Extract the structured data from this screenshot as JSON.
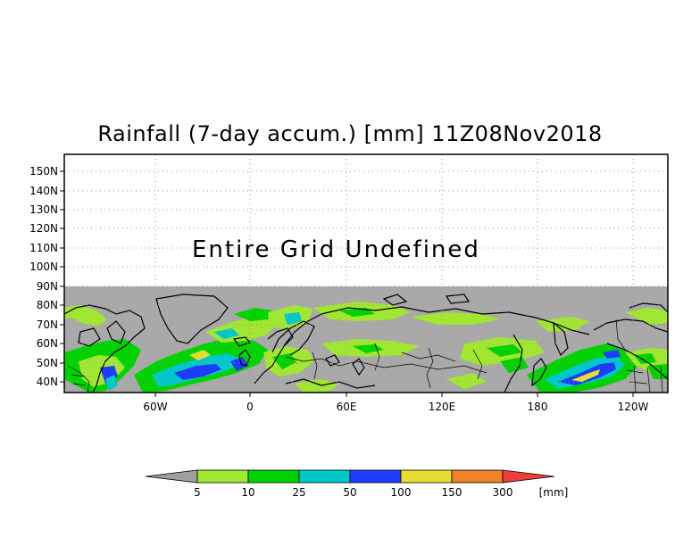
{
  "title": "Rainfall (7-day accum.) [mm] 11Z08Nov2018",
  "overlay_text": "Entire Grid Undefined",
  "lat_labels": [
    "150N",
    "140N",
    "130N",
    "120N",
    "110N",
    "100N",
    "90N",
    "80N",
    "70N",
    "60N",
    "50N",
    "40N"
  ],
  "lon_labels": [
    "60W",
    "0",
    "60E",
    "120E",
    "180",
    "120W"
  ],
  "legend": {
    "unit": "[mm]",
    "thresholds": [
      "5",
      "10",
      "25",
      "50",
      "100",
      "150",
      "300"
    ],
    "colors": [
      "#a0a0a0",
      "#a0e632",
      "#00d200",
      "#00c8c8",
      "#1e3cff",
      "#e6dc32",
      "#f08228",
      "#f03c3c"
    ]
  },
  "colors": {
    "no_data": "#a9a9a9",
    "coast": "#000000",
    "grid": "#999999"
  }
}
